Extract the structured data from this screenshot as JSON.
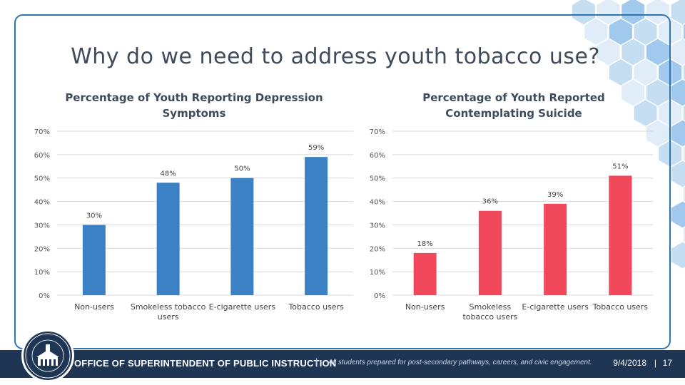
{
  "slide": {
    "title": "Why do we need to address youth tobacco use?"
  },
  "footer": {
    "org": "OFFICE OF SUPERINTENDENT OF PUBLIC INSTRUCTION",
    "separator": "|",
    "tagline": "All students prepared for post-secondary pathways, careers, and civic engagement.",
    "date": "9/4/2018",
    "page_separator": "|",
    "page": "17"
  },
  "colors": {
    "frame": "#2e75b6",
    "footer": "#1f3554",
    "hex_light": "#dbe9f7",
    "hex_mid": "#bcd8f0",
    "hex_dark": "#8fc0ea"
  },
  "chart_data": [
    {
      "type": "bar",
      "title_lines": [
        "Percentage of Youth Reporting Depression",
        "Symptoms"
      ],
      "categories": [
        "Non-users",
        "Smokeless tobacco users",
        "E-cigarette users",
        "Tobacco users"
      ],
      "category_lines": [
        [
          "Non-users"
        ],
        [
          "Smokeless tobacco",
          "users"
        ],
        [
          "E-cigarette users"
        ],
        [
          "Tobacco users"
        ]
      ],
      "values": [
        30,
        48,
        50,
        59
      ],
      "value_labels": [
        "30%",
        "48%",
        "50%",
        "59%"
      ],
      "ylim": [
        0,
        70
      ],
      "yticks": [
        "0%",
        "10%",
        "20%",
        "30%",
        "40%",
        "50%",
        "60%",
        "70%"
      ],
      "color": "#3b82c4",
      "grid": true
    },
    {
      "type": "bar",
      "title_lines": [
        "Percentage of Youth Reported",
        "Contemplating Suicide"
      ],
      "categories": [
        "Non-users",
        "Smokeless tobacco users",
        "E-cigarette users",
        "Tobacco users"
      ],
      "category_lines": [
        [
          "Non-users"
        ],
        [
          "Smokeless",
          "tobacco users"
        ],
        [
          "E-cigarette users"
        ],
        [
          "Tobacco users"
        ]
      ],
      "values": [
        18,
        36,
        39,
        51
      ],
      "value_labels": [
        "18%",
        "36%",
        "39%",
        "51%"
      ],
      "ylim": [
        0,
        70
      ],
      "yticks": [
        "0%",
        "10%",
        "20%",
        "30%",
        "40%",
        "50%",
        "60%",
        "70%"
      ],
      "color": "#f2485b",
      "grid": true
    }
  ]
}
